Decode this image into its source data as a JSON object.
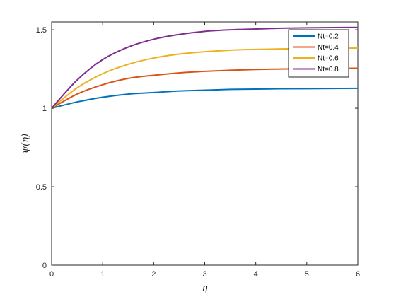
{
  "chart_data": {
    "type": "line",
    "xlabel": "η",
    "ylabel": "ψ(η)",
    "xlim": [
      0,
      6
    ],
    "ylim": [
      0,
      1.55
    ],
    "xticks": [
      "0",
      "1",
      "2",
      "3",
      "4",
      "5",
      "6"
    ],
    "yticks": [
      "0",
      "0.5",
      "1",
      "1.5"
    ],
    "xtick_values": [
      0,
      1,
      2,
      3,
      4,
      5,
      6
    ],
    "ytick_values": [
      0,
      0.5,
      1,
      1.5
    ],
    "grid": false,
    "legend_position": "top-right",
    "x": [
      0,
      0.5,
      1,
      1.5,
      2,
      2.5,
      3,
      3.5,
      4,
      4.5,
      5,
      5.5,
      6
    ],
    "series": [
      {
        "name": "Nt=0.2",
        "color": "#0072BD",
        "values": [
          1.0,
          1.04,
          1.07,
          1.09,
          1.1,
          1.11,
          1.115,
          1.12,
          1.122,
          1.124,
          1.125,
          1.126,
          1.127
        ]
      },
      {
        "name": "Nt=0.4",
        "color": "#D95319",
        "values": [
          1.0,
          1.09,
          1.15,
          1.19,
          1.21,
          1.225,
          1.235,
          1.242,
          1.247,
          1.25,
          1.252,
          1.254,
          1.255
        ]
      },
      {
        "name": "Nt=0.6",
        "color": "#EDB120",
        "values": [
          1.0,
          1.13,
          1.22,
          1.28,
          1.32,
          1.345,
          1.36,
          1.37,
          1.375,
          1.378,
          1.38,
          1.382,
          1.383
        ]
      },
      {
        "name": "Nt=0.8",
        "color": "#7E2F8E",
        "values": [
          1.0,
          1.18,
          1.31,
          1.39,
          1.44,
          1.47,
          1.49,
          1.5,
          1.505,
          1.51,
          1.512,
          1.514,
          1.515
        ]
      }
    ]
  }
}
